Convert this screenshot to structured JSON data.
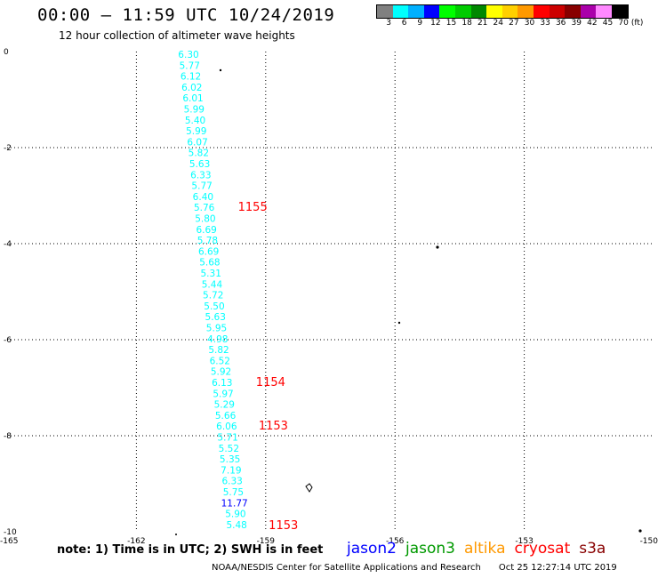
{
  "header": {
    "title": "00:00 – 11:59 UTC 10/24/2019",
    "subtitle": "12 hour collection of altimeter wave heights"
  },
  "legend": {
    "unit": "(ft)",
    "items": [
      {
        "label": "3",
        "color": "#808080"
      },
      {
        "label": "6",
        "color": "#00ffff"
      },
      {
        "label": "9",
        "color": "#00b0ff"
      },
      {
        "label": "12",
        "color": "#0000ff"
      },
      {
        "label": "15",
        "color": "#00ff00"
      },
      {
        "label": "18",
        "color": "#00cc00"
      },
      {
        "label": "21",
        "color": "#008800"
      },
      {
        "label": "24",
        "color": "#ffff00"
      },
      {
        "label": "27",
        "color": "#ffd000"
      },
      {
        "label": "30",
        "color": "#ff9900"
      },
      {
        "label": "33",
        "color": "#ff0000"
      },
      {
        "label": "36",
        "color": "#cc0000"
      },
      {
        "label": "39",
        "color": "#880000"
      },
      {
        "label": "42",
        "color": "#aa00aa"
      },
      {
        "label": "45",
        "color": "#ff88ff"
      },
      {
        "label": "70",
        "color": "#000000"
      }
    ]
  },
  "map": {
    "lon_ticks": [
      -165,
      -162,
      -159,
      -156,
      -153,
      -150
    ],
    "lat_ticks": [
      0,
      -2,
      -4,
      -6,
      -8,
      -10
    ],
    "lon_range": [
      -165,
      -150
    ],
    "lat_range": [
      -10,
      0
    ],
    "grid": "dotted",
    "track_values": [
      {
        "v": "6.30",
        "c": "#00ffff"
      },
      {
        "v": "5.77",
        "c": "#00ffff"
      },
      {
        "v": "6.12",
        "c": "#00ffff"
      },
      {
        "v": "6.02",
        "c": "#00ffff"
      },
      {
        "v": "6.01",
        "c": "#00ffff"
      },
      {
        "v": "5.99",
        "c": "#00ffff"
      },
      {
        "v": "5.40",
        "c": "#00ffff"
      },
      {
        "v": "5.99",
        "c": "#00ffff"
      },
      {
        "v": "6.07",
        "c": "#00ffff"
      },
      {
        "v": "5.82",
        "c": "#00ffff"
      },
      {
        "v": "5.63",
        "c": "#00ffff"
      },
      {
        "v": "6.33",
        "c": "#00ffff"
      },
      {
        "v": "5.77",
        "c": "#00ffff"
      },
      {
        "v": "6.40",
        "c": "#00ffff"
      },
      {
        "v": "5.76",
        "c": "#00ffff"
      },
      {
        "v": "5.80",
        "c": "#00ffff"
      },
      {
        "v": "6.69",
        "c": "#00ffff"
      },
      {
        "v": "5.78",
        "c": "#00ffff"
      },
      {
        "v": "6.69",
        "c": "#00ffff"
      },
      {
        "v": "5.68",
        "c": "#00ffff"
      },
      {
        "v": "5.31",
        "c": "#00ffff"
      },
      {
        "v": "5.44",
        "c": "#00ffff"
      },
      {
        "v": "5.72",
        "c": "#00ffff"
      },
      {
        "v": "5.50",
        "c": "#00ffff"
      },
      {
        "v": "5.63",
        "c": "#00ffff"
      },
      {
        "v": "5.95",
        "c": "#00ffff"
      },
      {
        "v": "4.98",
        "c": "#00ffff"
      },
      {
        "v": "5.82",
        "c": "#00ffff"
      },
      {
        "v": "6.52",
        "c": "#00ffff"
      },
      {
        "v": "5.92",
        "c": "#00ffff"
      },
      {
        "v": "6.13",
        "c": "#00ffff"
      },
      {
        "v": "5.97",
        "c": "#00ffff"
      },
      {
        "v": "5.29",
        "c": "#00ffff"
      },
      {
        "v": "5.66",
        "c": "#00ffff"
      },
      {
        "v": "6.06",
        "c": "#00ffff"
      },
      {
        "v": "5.71",
        "c": "#00ffff"
      },
      {
        "v": "5.52",
        "c": "#00ffff"
      },
      {
        "v": "5.35",
        "c": "#00ffff"
      },
      {
        "v": "7.19",
        "c": "#00ffff"
      },
      {
        "v": "6.33",
        "c": "#00ffff"
      },
      {
        "v": "5.75",
        "c": "#00ffff"
      },
      {
        "v": "11.77",
        "c": "#0000ff"
      },
      {
        "v": "5.90",
        "c": "#00ffff"
      },
      {
        "v": "5.48",
        "c": "#00ffff"
      }
    ],
    "time_labels": [
      {
        "t": "1155",
        "row": 14
      },
      {
        "t": "1154",
        "row": 30
      },
      {
        "t": "1153",
        "row": 34
      },
      {
        "t": "1153",
        "row": 43
      }
    ]
  },
  "footer": {
    "note": "note:  1) Time is in UTC;  2) SWH is in feet",
    "satellites": [
      {
        "name": "jason2",
        "color": "#0000ff"
      },
      {
        "name": "jason3",
        "color": "#009900"
      },
      {
        "name": "altika",
        "color": "#ff9900"
      },
      {
        "name": "cryosat",
        "color": "#ff0000"
      },
      {
        "name": "s3a",
        "color": "#880000"
      }
    ],
    "credit": "NOAA/NESDIS Center for Satellite Applications and Research",
    "timestamp": "Oct 25 12:27:14 UTC 2019"
  }
}
